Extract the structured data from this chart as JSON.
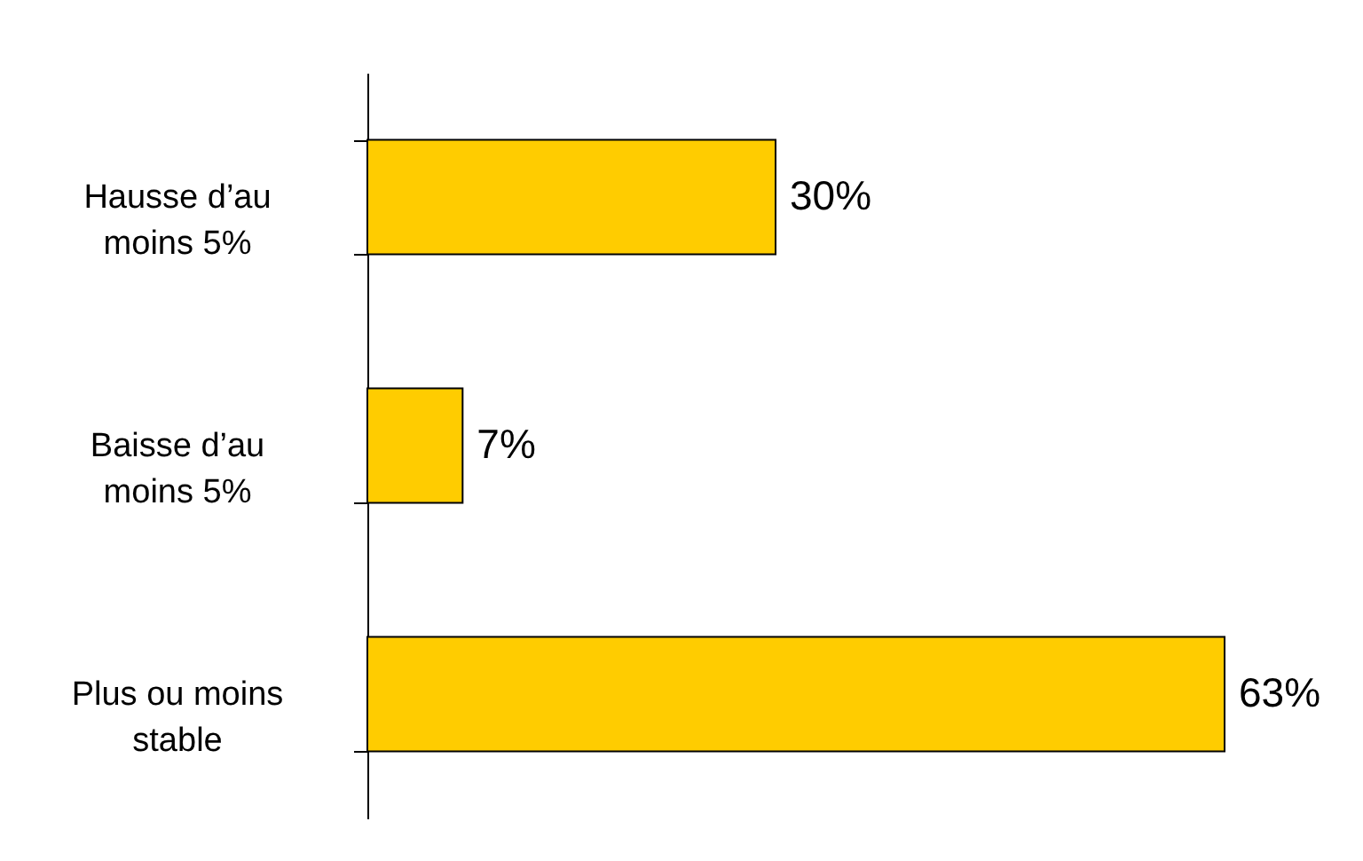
{
  "chart_data": {
    "type": "bar",
    "orientation": "horizontal",
    "categories": [
      "Hausse d’au moins 5%",
      "Baisse d’au moins 5%",
      "Plus ou moins stable"
    ],
    "values": [
      30,
      7,
      63
    ],
    "value_labels": [
      "30%",
      "7%",
      "63%"
    ],
    "color": "#ffcc00",
    "grid": false
  }
}
